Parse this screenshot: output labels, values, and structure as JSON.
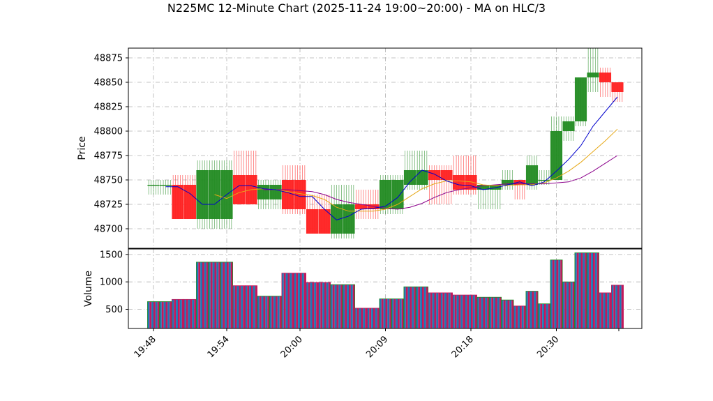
{
  "chart_data": {
    "type": "candlestick-volume",
    "title": "N225MC 12-Minute Chart (2025-11-24 19:00~20:00) - MA on HLC/3",
    "price_axis": {
      "label": "Price",
      "ylim": [
        48680,
        48885
      ],
      "ticks": [
        48700,
        48725,
        48750,
        48775,
        48800,
        48825,
        48850,
        48875
      ]
    },
    "volume_axis": {
      "label": "Volume",
      "ylim": [
        150,
        1600
      ],
      "ticks": [
        500,
        1000,
        1500
      ]
    },
    "x_axis": {
      "ticks": [
        "19:48",
        "19:54",
        "20:00",
        "20:09",
        "20:18",
        "20:30"
      ],
      "tick_index": [
        0,
        6,
        12,
        19,
        26,
        33
      ]
    },
    "grid": true,
    "colors": {
      "up": "#228B22",
      "down": "#FF2020",
      "ma_short": "#0000CC",
      "ma_mid": "#E6A817",
      "ma_long": "#8B008B",
      "volume_fill_a": "#1F77B4",
      "volume_fill_b": "#C2185B",
      "volume_edge_up": "#228B22",
      "volume_edge_down": "#C2185B"
    },
    "candles": [
      {
        "open": 48745,
        "close": 48745,
        "high": 48750,
        "low": 48735,
        "volume": 640
      },
      {
        "open": 48745,
        "close": 48745,
        "high": 48750,
        "low": 48735,
        "volume": 640
      },
      {
        "open": 48745,
        "close": 48710,
        "high": 48755,
        "low": 48710,
        "volume": 680
      },
      {
        "open": 48745,
        "close": 48710,
        "high": 48755,
        "low": 48710,
        "volume": 680
      },
      {
        "open": 48710,
        "close": 48760,
        "high": 48770,
        "low": 48700,
        "volume": 1360
      },
      {
        "open": 48710,
        "close": 48760,
        "high": 48770,
        "low": 48700,
        "volume": 1360
      },
      {
        "open": 48710,
        "close": 48760,
        "high": 48770,
        "low": 48700,
        "volume": 1360
      },
      {
        "open": 48755,
        "close": 48725,
        "high": 48780,
        "low": 48725,
        "volume": 930
      },
      {
        "open": 48755,
        "close": 48725,
        "high": 48780,
        "low": 48725,
        "volume": 930
      },
      {
        "open": 48730,
        "close": 48745,
        "high": 48750,
        "low": 48720,
        "volume": 740
      },
      {
        "open": 48730,
        "close": 48745,
        "high": 48750,
        "low": 48720,
        "volume": 740
      },
      {
        "open": 48750,
        "close": 48720,
        "high": 48765,
        "low": 48715,
        "volume": 1160
      },
      {
        "open": 48750,
        "close": 48720,
        "high": 48765,
        "low": 48715,
        "volume": 1160
      },
      {
        "open": 48720,
        "close": 48695,
        "high": 48735,
        "low": 48695,
        "volume": 990
      },
      {
        "open": 48720,
        "close": 48695,
        "high": 48735,
        "low": 48695,
        "volume": 990
      },
      {
        "open": 48695,
        "close": 48725,
        "high": 48745,
        "low": 48690,
        "volume": 950
      },
      {
        "open": 48695,
        "close": 48725,
        "high": 48745,
        "low": 48690,
        "volume": 950
      },
      {
        "open": 48725,
        "close": 48720,
        "high": 48740,
        "low": 48710,
        "volume": 520
      },
      {
        "open": 48725,
        "close": 48720,
        "high": 48740,
        "low": 48710,
        "volume": 520
      },
      {
        "open": 48720,
        "close": 48750,
        "high": 48755,
        "low": 48715,
        "volume": 690
      },
      {
        "open": 48720,
        "close": 48750,
        "high": 48755,
        "low": 48715,
        "volume": 690
      },
      {
        "open": 48745,
        "close": 48760,
        "high": 48780,
        "low": 48740,
        "volume": 910
      },
      {
        "open": 48745,
        "close": 48760,
        "high": 48780,
        "low": 48740,
        "volume": 910
      },
      {
        "open": 48760,
        "close": 48750,
        "high": 48765,
        "low": 48725,
        "volume": 800
      },
      {
        "open": 48760,
        "close": 48750,
        "high": 48765,
        "low": 48725,
        "volume": 800
      },
      {
        "open": 48755,
        "close": 48740,
        "high": 48775,
        "low": 48735,
        "volume": 760
      },
      {
        "open": 48755,
        "close": 48740,
        "high": 48775,
        "low": 48735,
        "volume": 760
      },
      {
        "open": 48740,
        "close": 48745,
        "high": 48745,
        "low": 48720,
        "volume": 720
      },
      {
        "open": 48740,
        "close": 48745,
        "high": 48745,
        "low": 48720,
        "volume": 720
      },
      {
        "open": 48745,
        "close": 48750,
        "high": 48760,
        "low": 48740,
        "volume": 670
      },
      {
        "open": 48750,
        "close": 48745,
        "high": 48750,
        "low": 48730,
        "volume": 560
      },
      {
        "open": 48745,
        "close": 48765,
        "high": 48775,
        "low": 48740,
        "volume": 830
      },
      {
        "open": 48750,
        "close": 48750,
        "high": 48760,
        "low": 48745,
        "volume": 600
      },
      {
        "open": 48750,
        "close": 48800,
        "high": 48815,
        "low": 48750,
        "volume": 1400
      },
      {
        "open": 48800,
        "close": 48810,
        "high": 48815,
        "low": 48790,
        "volume": 1000
      },
      {
        "open": 48810,
        "close": 48855,
        "high": 48855,
        "low": 48805,
        "volume": 1530
      },
      {
        "open": 48855,
        "close": 48860,
        "high": 48885,
        "low": 48840,
        "volume": 1530
      },
      {
        "open": 48860,
        "close": 48850,
        "high": 48865,
        "low": 48835,
        "volume": 800
      },
      {
        "open": 48850,
        "close": 48840,
        "high": 48850,
        "low": 48830,
        "volume": 940
      }
    ],
    "ma_short": [
      null,
      48743,
      48743,
      48736,
      48725,
      48725,
      48735,
      48744,
      48744,
      48741,
      48740,
      48737,
      48733,
      48733,
      48720,
      48709,
      48713,
      48720,
      48721,
      48723,
      48732,
      48748,
      48760,
      48756,
      48749,
      48745,
      48744,
      48740,
      48742,
      48745,
      48748,
      48744,
      48748,
      48759,
      48771,
      48785,
      48805,
      48820,
      48835
    ],
    "ma_mid": [
      null,
      null,
      null,
      null,
      null,
      48735,
      48731,
      48737,
      48740,
      48741,
      48740,
      48738,
      48736,
      48734,
      48730,
      48722,
      48718,
      48718,
      48718,
      48720,
      48725,
      48733,
      48741,
      48746,
      48749,
      48749,
      48748,
      48745,
      48744,
      48744,
      48745,
      48745,
      48747,
      48752,
      48759,
      48768,
      48779,
      48790,
      48802
    ],
    "ma_long": [
      null,
      null,
      null,
      null,
      null,
      null,
      null,
      null,
      null,
      48740,
      48740,
      48740,
      48739,
      48738,
      48735,
      48730,
      48727,
      48725,
      48723,
      48721,
      48720,
      48722,
      48726,
      48732,
      48737,
      48740,
      48742,
      48744,
      48745,
      48746,
      48746,
      48746,
      48746,
      48747,
      48748,
      48752,
      48759,
      48767,
      48775
    ]
  }
}
